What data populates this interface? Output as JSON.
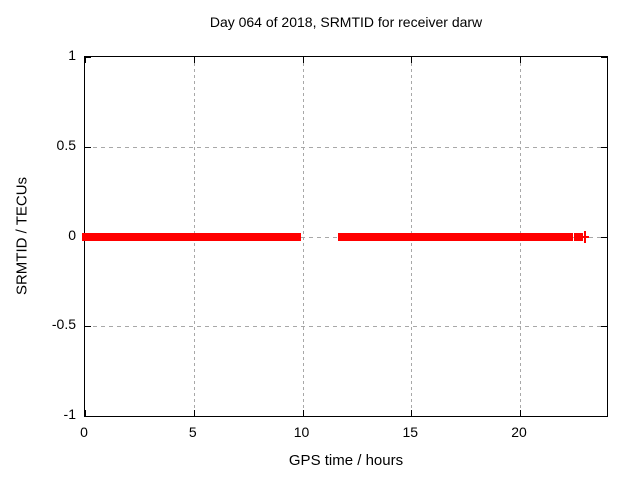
{
  "chart_data": {
    "type": "scatter",
    "title": "Day 064 of 2018, SRMTID for receiver darw",
    "xlabel": "GPS time / hours",
    "ylabel": "SRMTID / TECUs",
    "xlim": [
      0,
      24
    ],
    "ylim": [
      -1,
      1
    ],
    "x_ticks": [
      0,
      5,
      10,
      15,
      20
    ],
    "y_ticks": [
      -1,
      -0.5,
      0,
      0.5,
      1
    ],
    "grid": true,
    "legend": "none",
    "series": [
      {
        "name": "SRMTID",
        "color": "#ff0000",
        "marker": "plus",
        "y_value": 0,
        "segments_x_hours": [
          [
            0.0,
            9.8
          ],
          [
            11.78,
            22.28
          ],
          [
            22.6,
            22.74
          ]
        ],
        "isolated_x_hours": [
          23.0
        ]
      }
    ]
  },
  "colors": {
    "data": "#ff0000",
    "grid": "#a8a8a8",
    "border": "#000000",
    "text": "#000000",
    "background": "#ffffff"
  }
}
